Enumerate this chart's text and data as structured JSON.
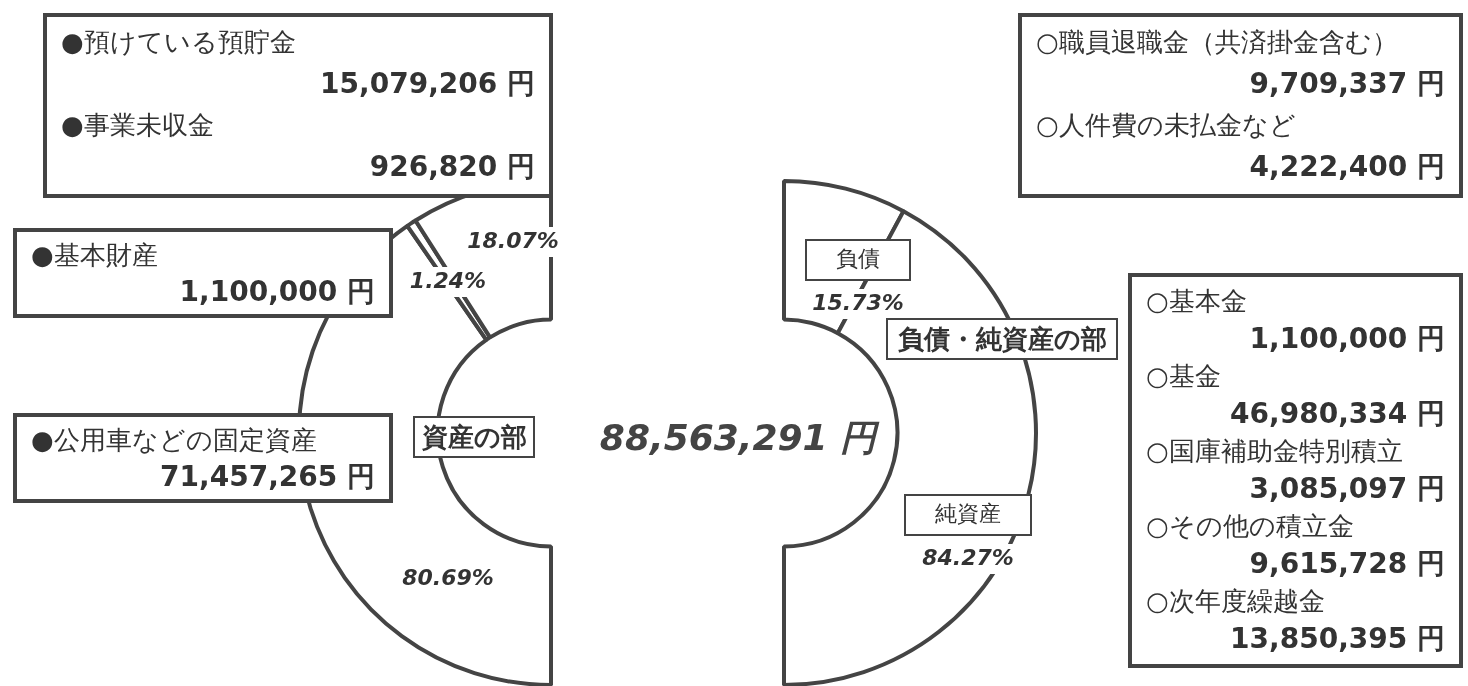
{
  "chart_data": [
    {
      "type": "donut",
      "title": "資産の部",
      "categories": [
        null,
        null,
        null
      ],
      "values": [
        80.69,
        1.24,
        18.07
      ],
      "colors": [
        "#ffffff",
        "#ffffff",
        "#ffffff"
      ],
      "value_labels": [
        "80.69%",
        "1.24%",
        "18.07%"
      ],
      "annotations": [
        "●預けている預貯金\n15,079,206 円\n●事業未収金\n926,820 円",
        "●基本財産\n1,100,000 円",
        "●公用車などの固定資産\n71,457,265 円",
        "88,563,291 円"
      ],
      "legend": false
    },
    {
      "type": "donut",
      "title": "負債・純資産の部",
      "categories": [
        "負債",
        "純資産"
      ],
      "values": [
        15.73,
        84.27
      ],
      "colors": [
        "#ffffff",
        "#ffffff"
      ],
      "value_labels": [
        "15.73%",
        "84.27%"
      ],
      "annotations": [
        "○職員退職金（共済掛金含む）\n9,709,337 円\n○人件費の未払金など\n4,222,400 円",
        "○基本金\n1,100,000 円\n○基金\n46,980,334 円\n○国庫補助金特別積立\n3,085,097 円\n○その他の積立金\n9,615,728 円\n○次年度繰越金\n13,850,395 円"
      ],
      "legend": false
    }
  ]
}
